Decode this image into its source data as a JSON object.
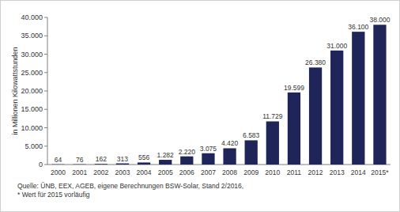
{
  "chart_data": {
    "type": "bar",
    "y_label": "in Millionen Kilowattstunden",
    "categories": [
      "2000",
      "2001",
      "2002",
      "2003",
      "2004",
      "2005",
      "2006",
      "2007",
      "2008",
      "2009",
      "2010",
      "2011",
      "2012",
      "2013",
      "2014",
      "2015*"
    ],
    "values": [
      64,
      76,
      162,
      313,
      556,
      1282,
      2220,
      3075,
      4420,
      6583,
      11729,
      19599,
      26380,
      31000,
      36100,
      38000
    ],
    "value_labels": [
      "64",
      "76",
      "162",
      "313",
      "556",
      "1.282",
      "2.220",
      "3.075",
      "4.420",
      "6.583",
      "11.729",
      "19.599",
      "26.380",
      "31.000",
      "36.100",
      "38.000"
    ],
    "color": "#1f2558",
    "ylim": [
      0,
      40000
    ],
    "yticks": [
      0,
      {
        "value": 5000,
        "label": "5.000"
      },
      {
        "value": 10000,
        "label": "10.000"
      },
      {
        "value": 15000,
        "label": "15.000"
      },
      {
        "value": 20000,
        "label": "20.000"
      },
      {
        "value": 25000,
        "label": "25.000"
      },
      {
        "value": 30000,
        "label": "30.000"
      },
      {
        "value": 35000,
        "label": "35.000"
      },
      {
        "value": 40000,
        "label": "40.000"
      }
    ],
    "grid": false,
    "data_labels": true,
    "annotations": [
      "Quelle: ÜNB, EEX, AGEB, eigene Berechnungen BSW-Solar, Stand 2/2016,",
      "* Wert für 2015 vorläufig"
    ]
  }
}
